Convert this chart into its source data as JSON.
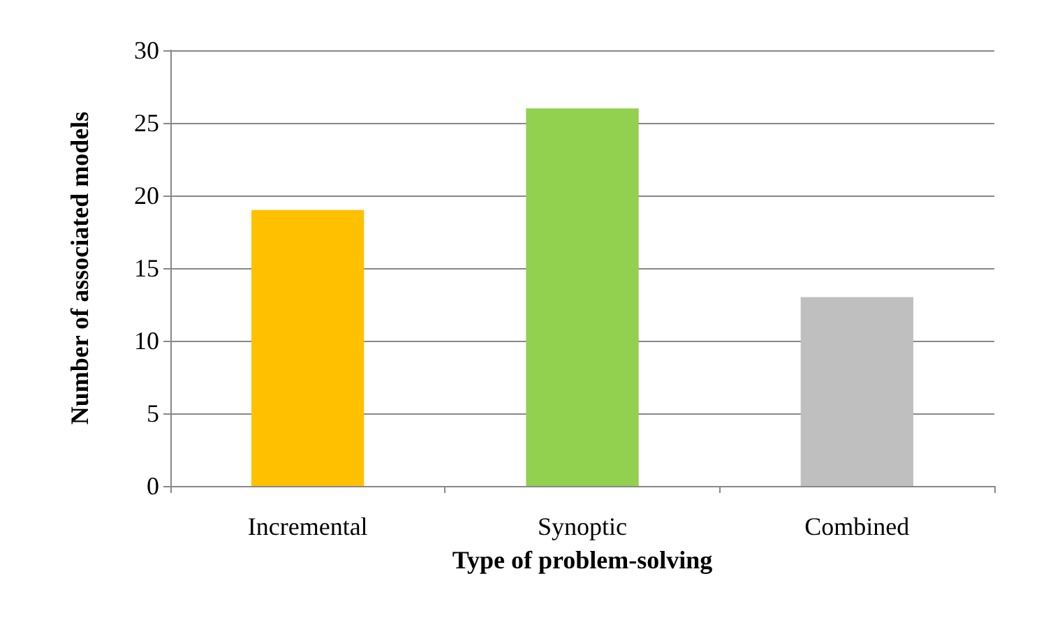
{
  "chart_data": {
    "type": "bar",
    "xlabel": "Type of problem-solving",
    "ylabel": "Number of associated models",
    "categories": [
      "Incremental",
      "Synoptic",
      "Combined"
    ],
    "values": [
      19,
      26,
      13
    ],
    "colors": [
      "#ffc000",
      "#92d050",
      "#bfbfbf"
    ],
    "ylim": [
      0,
      30
    ],
    "yticks": [
      0,
      5,
      10,
      15,
      20,
      25,
      30
    ],
    "grid": "y"
  }
}
